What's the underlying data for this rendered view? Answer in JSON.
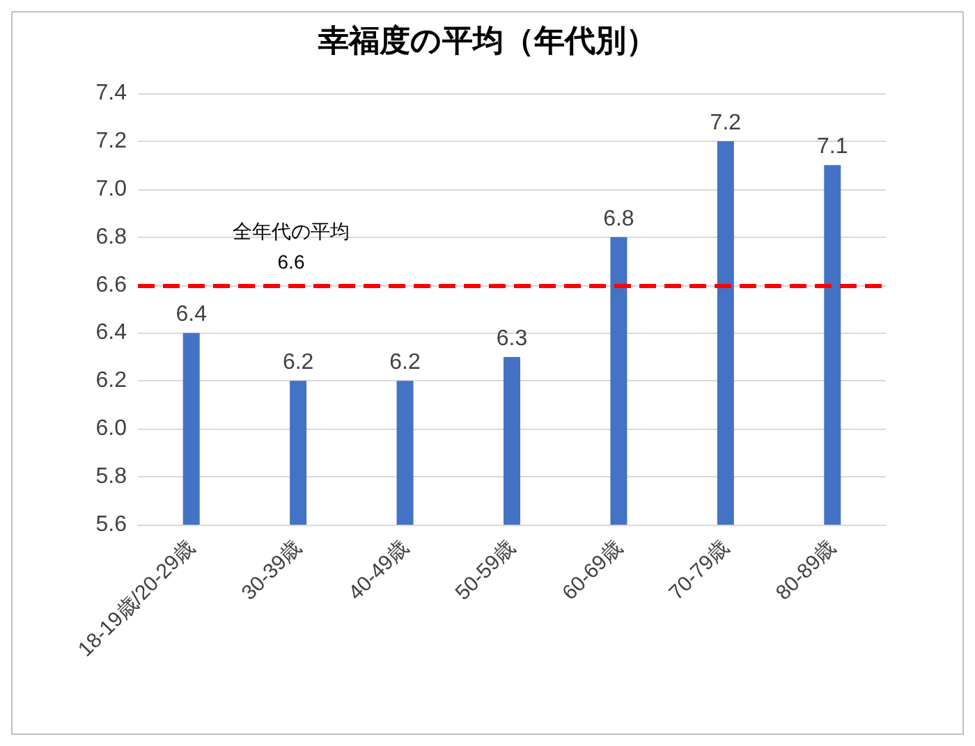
{
  "chart_data": {
    "type": "bar",
    "title": "幸福度の平均（年代別）",
    "categories": [
      "18-19歳/20-29歳",
      "30-39歳",
      "40-49歳",
      "50-59歳",
      "60-69歳",
      "70-79歳",
      "80-89歳"
    ],
    "values": [
      6.4,
      6.2,
      6.2,
      6.3,
      6.8,
      7.2,
      7.1
    ],
    "color": "#4472c4",
    "ylim": [
      5.6,
      7.4
    ],
    "yticks": [
      {
        "value": 5.6,
        "label": "5.6"
      },
      {
        "value": 5.8,
        "label": "5.8"
      },
      {
        "value": 6.0,
        "label": "6.0"
      },
      {
        "value": 6.2,
        "label": "6.2"
      },
      {
        "value": 6.4,
        "label": "6.4"
      },
      {
        "value": 6.6,
        "label": "6.6"
      },
      {
        "value": 6.8,
        "label": "6.8"
      },
      {
        "value": 7.0,
        "label": "7.0"
      },
      {
        "value": 7.2,
        "label": "7.2"
      },
      {
        "value": 7.4,
        "label": "7.4"
      }
    ],
    "grid": "y",
    "data_labels": true,
    "ref_lines": [
      {
        "axis": "y",
        "value": 6.6,
        "label": "全年代の平均\n6.6",
        "color": "#ff0000",
        "line_style": "dashed"
      }
    ]
  }
}
